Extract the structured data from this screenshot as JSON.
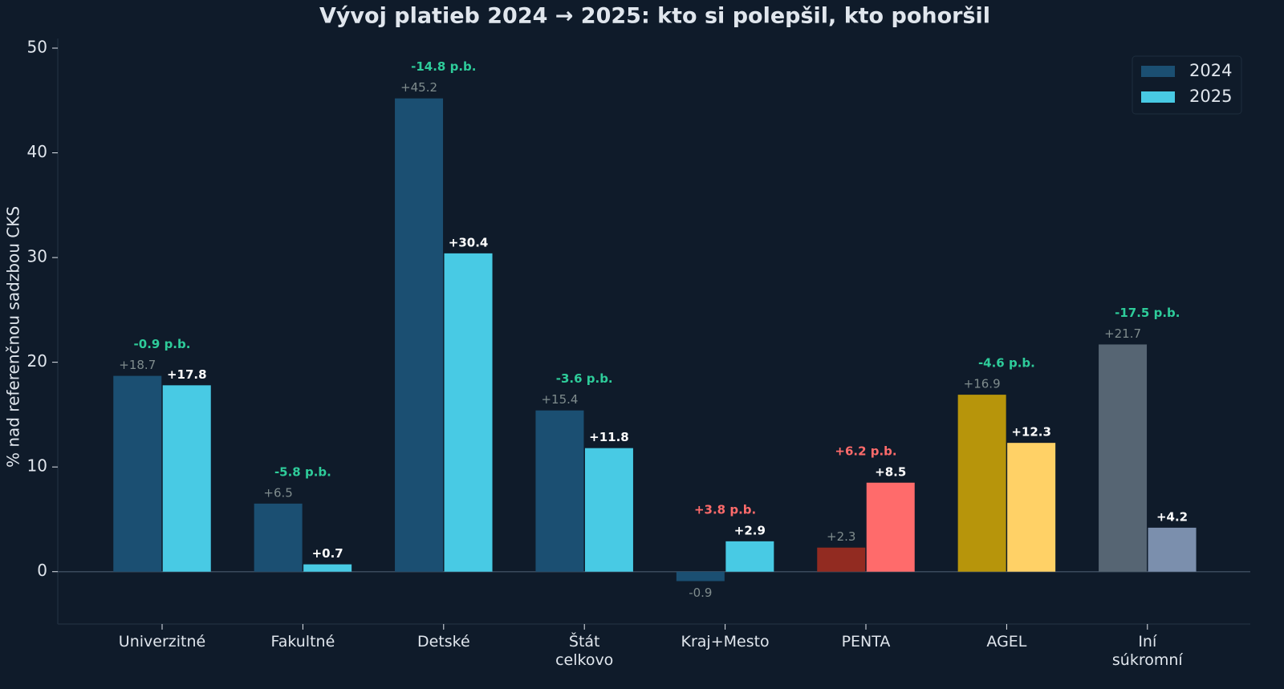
{
  "chart_data": {
    "type": "bar",
    "title": "Vývoj platieb 2024 → 2025: kto si polepšil, kto pohoršil",
    "y_label": "% nad referenčnou sadzbou CKS",
    "categories": [
      "Univerzitné",
      "Fakultné",
      "Detské",
      "Štát\ncelkovo",
      "Kraj+Mesto",
      "PENTA",
      "AGEL",
      "Iní\nsúkromní"
    ],
    "series": [
      {
        "name": "2024",
        "color": "#1b4f72",
        "colors": [
          "#1b4f72",
          "#1b4f72",
          "#1b4f72",
          "#1b4f72",
          "#1b4f72",
          "#922b21",
          "#b7950b",
          "#566573"
        ],
        "values": [
          18.7,
          6.5,
          45.2,
          15.4,
          -0.9,
          2.3,
          16.9,
          21.7
        ],
        "value_labels": [
          "+18.7",
          "+6.5",
          "+45.2",
          "+15.4",
          "-0.9",
          "+2.3",
          "+16.9",
          "+21.7"
        ],
        "label_color": "#7f8c8d"
      },
      {
        "name": "2025",
        "color": "#48cae4",
        "colors": [
          "#48cae4",
          "#48cae4",
          "#48cae4",
          "#48cae4",
          "#48cae4",
          "#ff6b6b",
          "#ffd166",
          "#7b8fad"
        ],
        "values": [
          17.8,
          0.7,
          30.4,
          11.8,
          2.9,
          8.5,
          12.3,
          4.2
        ],
        "value_labels": [
          "+17.8",
          "+0.7",
          "+30.4",
          "+11.8",
          "+2.9",
          "+8.5",
          "+12.3",
          "+4.2"
        ],
        "label_color": "#ffffff"
      }
    ],
    "change_labels": [
      "-0.9 p.b.",
      "-5.8 p.b.",
      "-14.8 p.b.",
      "-3.6 p.b.",
      "+3.8 p.b.",
      "+6.2 p.b.",
      "-4.6 p.b.",
      "-17.5 p.b."
    ],
    "change_colors": [
      "#2ecc9a",
      "#2ecc9a",
      "#2ecc9a",
      "#2ecc9a",
      "#ff6b6b",
      "#ff6b6b",
      "#2ecc9a",
      "#2ecc9a"
    ],
    "ylim": [
      -5,
      50
    ],
    "yticks": [
      0,
      10,
      20,
      30,
      40,
      50
    ],
    "legend": "upper right"
  }
}
